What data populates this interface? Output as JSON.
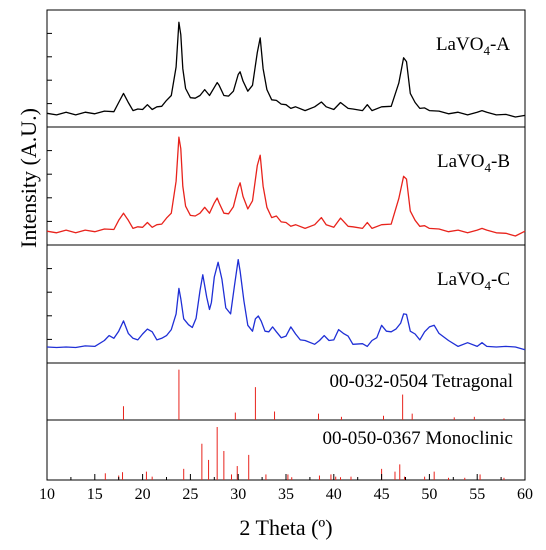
{
  "chart_data": [
    {
      "type": "line",
      "series": [
        {
          "name": "LaVO4-A",
          "label_main": "LaVO",
          "label_sub": "4",
          "label_suffix": "-A",
          "color": "#000000"
        }
      ],
      "x": [
        10,
        11,
        12,
        13,
        14,
        15,
        16,
        17,
        17.5,
        18,
        18.5,
        19,
        19.5,
        20,
        20.5,
        21,
        21.5,
        22,
        22.5,
        23,
        23.5,
        23.8,
        24,
        24.2,
        24.5,
        25,
        25.5,
        26,
        26.5,
        27,
        27.5,
        27.8,
        28,
        28.5,
        29,
        29.5,
        30,
        30.2,
        30.5,
        31,
        31.5,
        32,
        32.3,
        32.6,
        33,
        33.5,
        34,
        34.5,
        35,
        35.5,
        36,
        37,
        38,
        38.7,
        39.2,
        40,
        40.7,
        41.5,
        42,
        43,
        43.5,
        44,
        45,
        46,
        46.8,
        47.3,
        47.6,
        48,
        48.5,
        49,
        49.5,
        50,
        51,
        52,
        53,
        54,
        55,
        55.5,
        56,
        57,
        58,
        59,
        60
      ],
      "y": [
        0.12,
        0.12,
        0.13,
        0.12,
        0.13,
        0.13,
        0.14,
        0.15,
        0.22,
        0.32,
        0.22,
        0.16,
        0.16,
        0.17,
        0.2,
        0.17,
        0.18,
        0.2,
        0.24,
        0.3,
        0.55,
        0.98,
        0.85,
        0.55,
        0.35,
        0.28,
        0.26,
        0.3,
        0.34,
        0.3,
        0.36,
        0.42,
        0.38,
        0.3,
        0.28,
        0.34,
        0.48,
        0.52,
        0.42,
        0.34,
        0.38,
        0.7,
        0.82,
        0.55,
        0.34,
        0.26,
        0.24,
        0.22,
        0.2,
        0.18,
        0.18,
        0.16,
        0.18,
        0.24,
        0.18,
        0.17,
        0.22,
        0.18,
        0.16,
        0.16,
        0.2,
        0.16,
        0.18,
        0.2,
        0.4,
        0.65,
        0.6,
        0.32,
        0.22,
        0.18,
        0.17,
        0.16,
        0.14,
        0.13,
        0.13,
        0.12,
        0.13,
        0.16,
        0.13,
        0.12,
        0.11,
        0.1,
        0.1
      ],
      "xlim": [
        10,
        60
      ]
    },
    {
      "type": "line",
      "series": [
        {
          "name": "LaVO4-B",
          "label_main": "LaVO",
          "label_sub": "4",
          "label_suffix": "-B",
          "color": "#e8231c"
        }
      ],
      "x": [
        10,
        11,
        12,
        13,
        14,
        15,
        16,
        17,
        17.5,
        18,
        18.5,
        19,
        19.5,
        20,
        20.5,
        21,
        21.5,
        22,
        22.5,
        23,
        23.5,
        23.8,
        24,
        24.2,
        24.5,
        25,
        25.5,
        26,
        26.5,
        27,
        27.5,
        27.8,
        28,
        28.5,
        29,
        29.5,
        30,
        30.2,
        30.5,
        31,
        31.5,
        32,
        32.3,
        32.6,
        33,
        33.5,
        34,
        34.5,
        35,
        35.5,
        36,
        37,
        38,
        38.7,
        39.2,
        40,
        40.7,
        41.5,
        42,
        43,
        43.5,
        44,
        45,
        46,
        46.8,
        47.3,
        47.6,
        48,
        48.5,
        49,
        49.5,
        50,
        51,
        52,
        53,
        54,
        55,
        55.5,
        56,
        57,
        58,
        59,
        60
      ],
      "y": [
        0.12,
        0.12,
        0.13,
        0.12,
        0.13,
        0.13,
        0.14,
        0.15,
        0.22,
        0.3,
        0.22,
        0.16,
        0.16,
        0.17,
        0.2,
        0.17,
        0.18,
        0.2,
        0.24,
        0.3,
        0.58,
        1.0,
        0.88,
        0.55,
        0.35,
        0.28,
        0.26,
        0.3,
        0.34,
        0.3,
        0.38,
        0.44,
        0.38,
        0.3,
        0.28,
        0.36,
        0.52,
        0.58,
        0.44,
        0.34,
        0.4,
        0.74,
        0.82,
        0.55,
        0.34,
        0.26,
        0.26,
        0.22,
        0.2,
        0.18,
        0.18,
        0.16,
        0.18,
        0.26,
        0.18,
        0.17,
        0.24,
        0.18,
        0.16,
        0.16,
        0.2,
        0.16,
        0.18,
        0.2,
        0.42,
        0.64,
        0.6,
        0.32,
        0.22,
        0.18,
        0.17,
        0.16,
        0.14,
        0.13,
        0.13,
        0.12,
        0.13,
        0.16,
        0.13,
        0.12,
        0.1,
        0.09,
        0.12
      ],
      "xlim": [
        10,
        60
      ]
    },
    {
      "type": "line",
      "series": [
        {
          "name": "LaVO4-C",
          "label_main": "LaVO",
          "label_sub": "4",
          "label_suffix": "-C",
          "color": "#1f2fd6"
        }
      ],
      "x": [
        10,
        11,
        12,
        13,
        14,
        15,
        16,
        16.5,
        17,
        17.5,
        18,
        18.5,
        19,
        19.5,
        20,
        20.5,
        21,
        21.5,
        22,
        22.5,
        23,
        23.5,
        23.8,
        24,
        24.3,
        24.8,
        25.2,
        25.6,
        26,
        26.3,
        26.7,
        27,
        27.2,
        27.5,
        27.9,
        28.3,
        28.7,
        29.2,
        29.6,
        30,
        30.2,
        30.6,
        31,
        31.5,
        31.8,
        32.1,
        32.4,
        32.8,
        33.2,
        33.6,
        34,
        34.5,
        35,
        35.5,
        36,
        36.5,
        37,
        38,
        38.5,
        39,
        39.5,
        40,
        40.5,
        41,
        41.5,
        42,
        43,
        43.5,
        44,
        44.5,
        45,
        45.5,
        46,
        46.5,
        47,
        47.3,
        47.6,
        48,
        48.5,
        49,
        49.5,
        50,
        50.5,
        51,
        52,
        53,
        54,
        55,
        55.5,
        56,
        57,
        58,
        59,
        60
      ],
      "y": [
        0.14,
        0.15,
        0.14,
        0.15,
        0.15,
        0.16,
        0.2,
        0.26,
        0.22,
        0.3,
        0.38,
        0.28,
        0.22,
        0.22,
        0.26,
        0.32,
        0.28,
        0.22,
        0.22,
        0.26,
        0.3,
        0.46,
        0.68,
        0.6,
        0.4,
        0.36,
        0.32,
        0.42,
        0.66,
        0.82,
        0.6,
        0.5,
        0.55,
        0.8,
        0.92,
        0.78,
        0.5,
        0.46,
        0.7,
        0.96,
        0.84,
        0.58,
        0.34,
        0.3,
        0.4,
        0.44,
        0.38,
        0.3,
        0.28,
        0.34,
        0.28,
        0.24,
        0.24,
        0.34,
        0.26,
        0.22,
        0.2,
        0.18,
        0.2,
        0.26,
        0.2,
        0.22,
        0.3,
        0.28,
        0.24,
        0.18,
        0.17,
        0.16,
        0.2,
        0.24,
        0.34,
        0.3,
        0.28,
        0.32,
        0.36,
        0.46,
        0.44,
        0.3,
        0.26,
        0.22,
        0.28,
        0.34,
        0.34,
        0.28,
        0.2,
        0.16,
        0.18,
        0.16,
        0.18,
        0.16,
        0.14,
        0.16,
        0.14,
        0.13
      ],
      "xlim": [
        10,
        60
      ]
    },
    {
      "type": "bar",
      "series": [
        {
          "name": "00-032-0504 Tetragonal",
          "color": "#e8231c"
        }
      ],
      "x": [
        18.0,
        23.8,
        29.7,
        31.8,
        33.8,
        38.4,
        40.8,
        45.2,
        47.2,
        48.2,
        52.6,
        54.7,
        57.8
      ],
      "values": [
        0.26,
        0.95,
        0.14,
        0.62,
        0.16,
        0.12,
        0.06,
        0.08,
        0.48,
        0.12,
        0.05,
        0.06,
        0.03
      ],
      "xlim": [
        10,
        60
      ]
    },
    {
      "type": "bar",
      "series": [
        {
          "name": "00-050-0367 Monoclinic",
          "color": "#e8231c"
        }
      ],
      "x": [
        16.1,
        17.5,
        17.9,
        20.4,
        21.0,
        24.3,
        26.2,
        26.9,
        27.8,
        28.5,
        29.3,
        29.9,
        31.1,
        32.9,
        35.2,
        35.6,
        38.5,
        39.7,
        40.2,
        40.7,
        41.8,
        45.0,
        46.4,
        46.9,
        47.4,
        49.5,
        50.5,
        52.0,
        53.7,
        55.3,
        57.8
      ],
      "values": [
        0.12,
        0.08,
        0.14,
        0.15,
        0.06,
        0.2,
        0.65,
        0.36,
        0.95,
        0.52,
        0.1,
        0.25,
        0.45,
        0.1,
        0.1,
        0.05,
        0.08,
        0.1,
        0.06,
        0.05,
        0.06,
        0.2,
        0.15,
        0.28,
        0.06,
        0.06,
        0.15,
        0.04,
        0.04,
        0.1,
        0.04
      ],
      "xlim": [
        10,
        60
      ]
    }
  ],
  "axes": {
    "xlabel": "2 Theta (º)",
    "ylabel": "Intensity (A.U.)",
    "xlim": [
      10,
      60
    ],
    "x_ticks": [
      10,
      15,
      20,
      25,
      30,
      35,
      40,
      45,
      50,
      55,
      60
    ],
    "grid": false
  }
}
